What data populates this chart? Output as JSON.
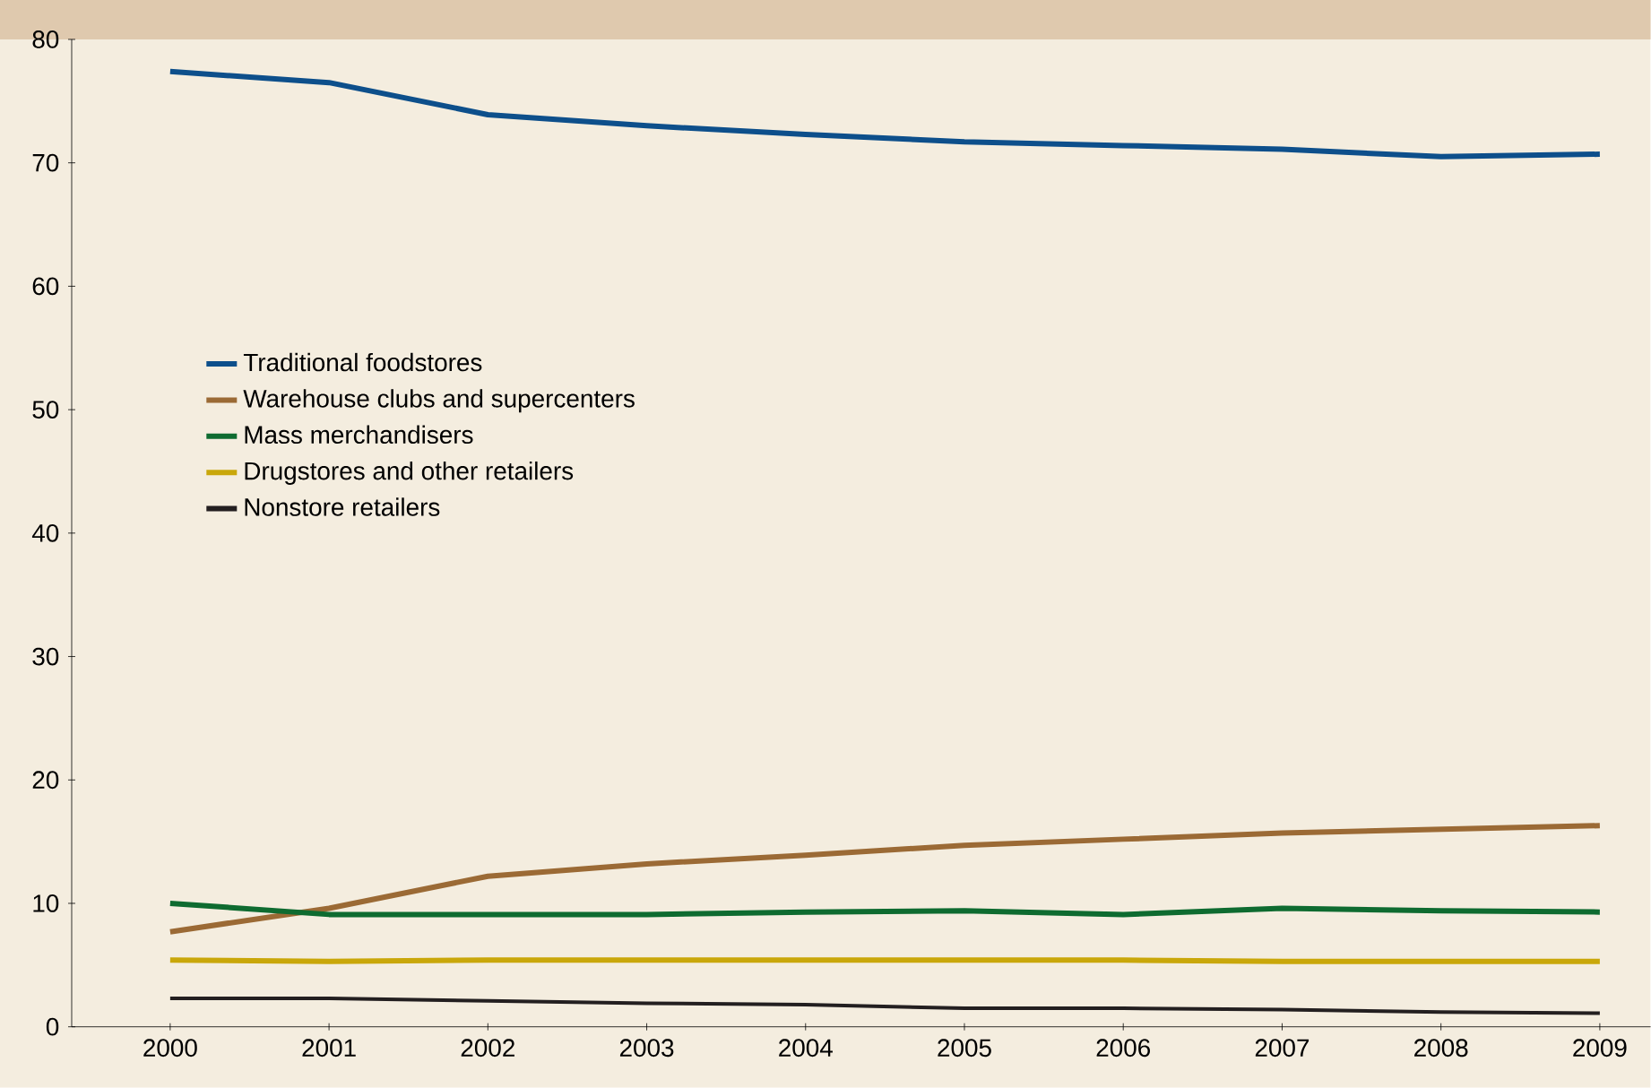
{
  "chart_data": {
    "type": "line",
    "x": [
      2000,
      2001,
      2002,
      2003,
      2004,
      2005,
      2006,
      2007,
      2008,
      2009
    ],
    "xlim": [
      1999.38,
      2009.32
    ],
    "xticks": [
      2000,
      2001,
      2002,
      2003,
      2004,
      2005,
      2006,
      2007,
      2008,
      2009
    ],
    "ylim": [
      0,
      80
    ],
    "yticks": [
      0,
      10,
      20,
      30,
      40,
      50,
      60,
      70,
      80
    ],
    "grid": false,
    "legend": "left",
    "marker": "none",
    "line_style": "solid",
    "series": [
      {
        "name": "Traditional foodstores",
        "color": "#0d4f8b",
        "values": [
          77.4,
          76.5,
          73.9,
          73.0,
          72.3,
          71.7,
          71.4,
          71.1,
          70.5,
          70.7
        ]
      },
      {
        "name": "Warehouse clubs and supercenters",
        "color": "#9b6a35",
        "values": [
          7.7,
          9.6,
          12.2,
          13.2,
          13.9,
          14.7,
          15.2,
          15.7,
          16.0,
          16.3
        ]
      },
      {
        "name": "Mass merchandisers",
        "color": "#0e6b30",
        "values": [
          10.0,
          9.1,
          9.1,
          9.1,
          9.3,
          9.4,
          9.1,
          9.6,
          9.4,
          9.3
        ]
      },
      {
        "name": "Drugstores and other retailers",
        "color": "#c9a70a",
        "values": [
          5.4,
          5.3,
          5.4,
          5.4,
          5.4,
          5.4,
          5.4,
          5.3,
          5.3,
          5.3
        ]
      },
      {
        "name": "Nonstore retailers",
        "color": "#231f20",
        "values": [
          2.3,
          2.3,
          2.1,
          1.9,
          1.8,
          1.5,
          1.5,
          1.4,
          1.2,
          1.1
        ]
      }
    ]
  }
}
